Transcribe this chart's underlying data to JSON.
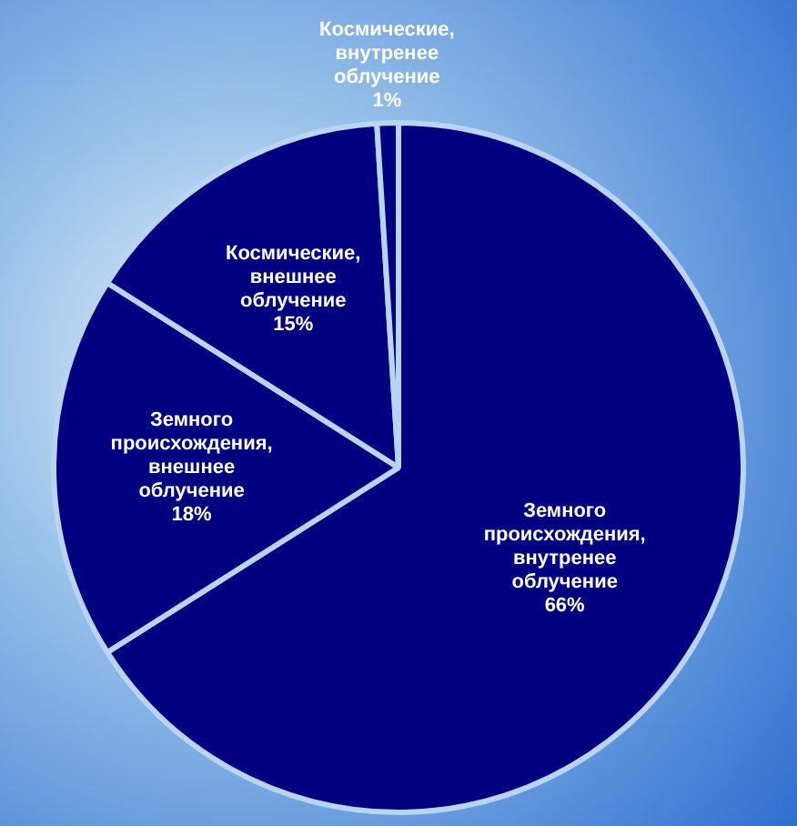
{
  "chart_data": {
    "type": "pie",
    "categories": [
      "Земного происхождения, внутренее облучение",
      "Земного происхождения, внешнее облучение",
      "Космические, внешнее облучение",
      "Космические, внутренее облучение"
    ],
    "values": [
      66,
      18,
      15,
      1
    ],
    "value_labels": [
      "66%",
      "18%",
      "15%",
      "1%"
    ],
    "colors": [
      "#000080",
      "#000080",
      "#000080",
      "#000080"
    ],
    "legend": false
  }
}
